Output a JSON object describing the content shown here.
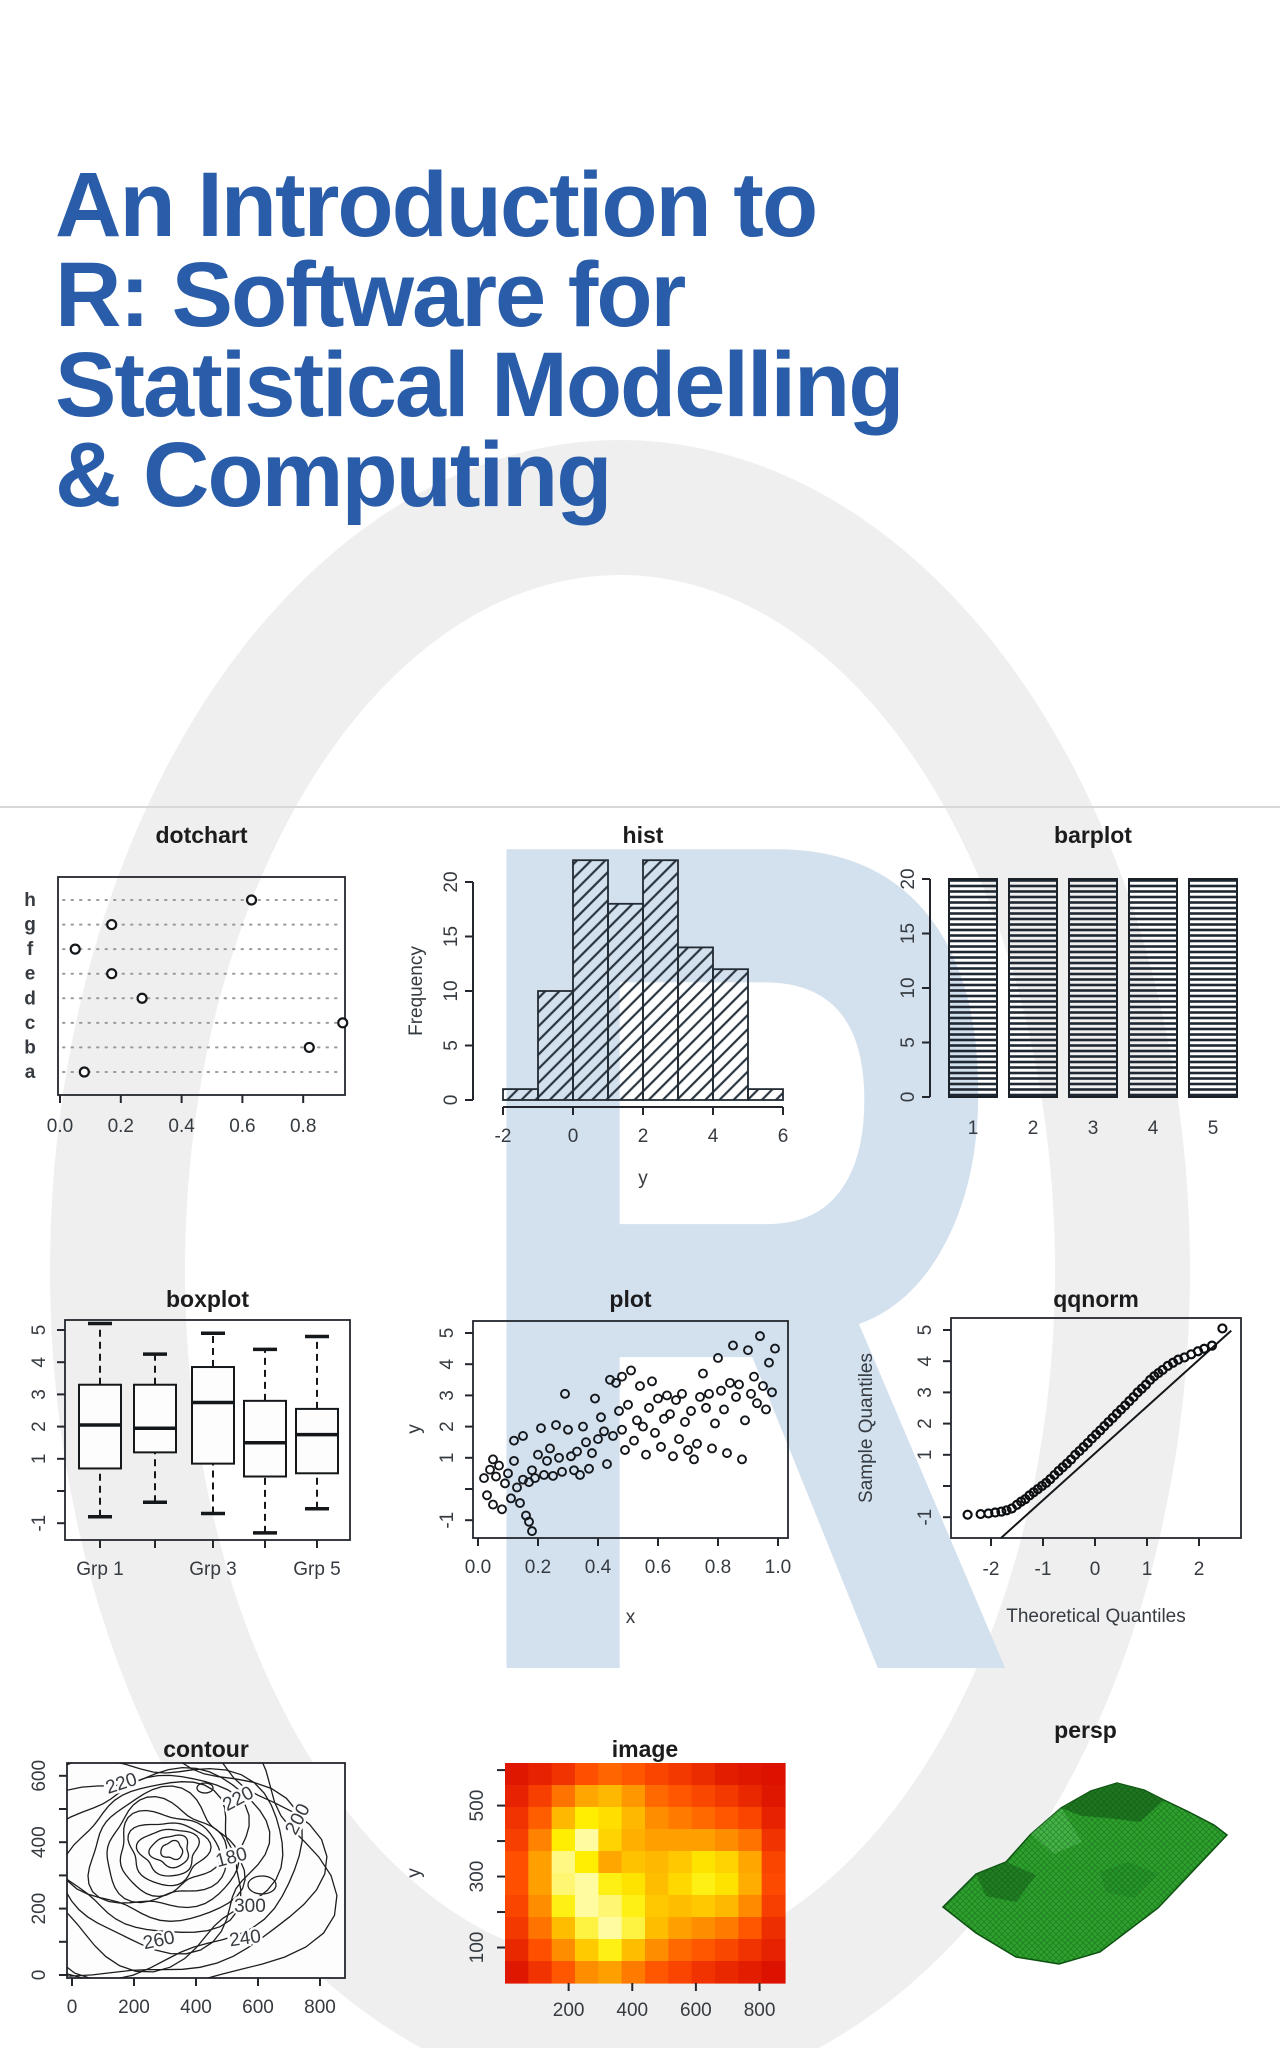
{
  "page": {
    "title_lines": [
      "An Introduction to",
      "R: Software for",
      "Statistical Modelling",
      "& Computing"
    ],
    "watermark_letter": "R",
    "colors": {
      "title_blue": "#2a5da9",
      "watermark_blue": "#d3e0ee",
      "ring_gray": "#efefef",
      "ink": "#23272d"
    }
  },
  "chart_data": [
    {
      "name": "dotchart",
      "type": "dotchart",
      "title": "dotchart",
      "categories_top_to_bottom": [
        "h",
        "g",
        "f",
        "e",
        "d",
        "c",
        "b",
        "a"
      ],
      "values": {
        "a": 0.08,
        "b": 0.82,
        "c": 0.93,
        "d": 0.27,
        "e": 0.17,
        "f": 0.05,
        "g": 0.17,
        "h": 0.63
      },
      "xticks": [
        0.0,
        0.2,
        0.4,
        0.6,
        0.8
      ],
      "xtick_labels": [
        "0.0",
        "0.2",
        "0.4",
        "0.6",
        "0.8"
      ],
      "xlim": [
        0,
        0.94
      ]
    },
    {
      "name": "hist",
      "type": "hist",
      "title": "hist",
      "ylabel": "Frequency",
      "xlabel": "y",
      "bins_start": -2,
      "bin_width": 1,
      "counts": [
        1,
        10,
        22,
        18,
        22,
        14,
        12,
        1
      ],
      "yticks": [
        0,
        5,
        10,
        15,
        20
      ],
      "ytick_labels": [
        "0",
        "5",
        "10",
        "15",
        "20"
      ],
      "xticks": [
        -2,
        0,
        2,
        4,
        6
      ],
      "xtick_labels": [
        "-2",
        "0",
        "2",
        "4",
        "6"
      ],
      "hatch": "diagonal"
    },
    {
      "name": "barplot",
      "type": "barplot",
      "title": "barplot",
      "categories": [
        "1",
        "2",
        "3",
        "4",
        "5"
      ],
      "values": [
        20,
        20,
        20,
        20,
        20
      ],
      "yticks": [
        0,
        5,
        10,
        15,
        20
      ],
      "ytick_labels": [
        "0",
        "5",
        "10",
        "15",
        "20"
      ],
      "hatch": "horizontal"
    },
    {
      "name": "boxplot",
      "type": "boxplot",
      "title": "boxplot",
      "yticks": [
        -1,
        0,
        1,
        2,
        3,
        4,
        5
      ],
      "ytick_labels": [
        "-1",
        "",
        "1",
        "2",
        "3",
        "4",
        "5"
      ],
      "xtick_labels": [
        "Grp 1",
        "",
        "Grp 3",
        "",
        "Grp 5"
      ],
      "boxes": [
        {
          "low": -0.8,
          "q1": 0.7,
          "med": 2.05,
          "q3": 3.3,
          "high": 5.2
        },
        {
          "low": -0.35,
          "q1": 1.2,
          "med": 1.95,
          "q3": 3.3,
          "high": 4.25
        },
        {
          "low": -0.7,
          "q1": 0.85,
          "med": 2.75,
          "q3": 3.85,
          "high": 4.9
        },
        {
          "low": -1.3,
          "q1": 0.45,
          "med": 1.5,
          "q3": 2.8,
          "high": 4.4
        },
        {
          "low": -0.55,
          "q1": 0.55,
          "med": 1.75,
          "q3": 2.55,
          "high": 4.8
        }
      ]
    },
    {
      "name": "plot",
      "type": "scatter",
      "title": "plot",
      "xlabel": "x",
      "ylabel": "y",
      "xticks": [
        0.0,
        0.2,
        0.4,
        0.6,
        0.8,
        1.0
      ],
      "xtick_labels": [
        "0.0",
        "0.2",
        "0.4",
        "0.6",
        "0.8",
        "1.0"
      ],
      "yticks": [
        -1,
        0,
        1,
        2,
        3,
        4,
        5
      ],
      "ytick_labels": [
        "-1",
        "",
        "1",
        "2",
        "3",
        "4",
        "5"
      ],
      "points": [
        [
          0.02,
          0.35
        ],
        [
          0.03,
          -0.2
        ],
        [
          0.04,
          0.62
        ],
        [
          0.05,
          0.95
        ],
        [
          0.05,
          -0.5
        ],
        [
          0.06,
          0.4
        ],
        [
          0.07,
          0.75
        ],
        [
          0.08,
          -0.65
        ],
        [
          0.09,
          0.18
        ],
        [
          0.1,
          0.5
        ],
        [
          0.11,
          -0.3
        ],
        [
          0.12,
          0.9
        ],
        [
          0.12,
          1.55
        ],
        [
          0.13,
          0.05
        ],
        [
          0.14,
          -0.45
        ],
        [
          0.15,
          0.3
        ],
        [
          0.15,
          1.7
        ],
        [
          0.16,
          -0.85
        ],
        [
          0.17,
          0.22
        ],
        [
          0.17,
          -1.05
        ],
        [
          0.18,
          0.6
        ],
        [
          0.18,
          -1.35
        ],
        [
          0.19,
          0.35
        ],
        [
          0.2,
          1.1
        ],
        [
          0.21,
          1.95
        ],
        [
          0.22,
          0.45
        ],
        [
          0.23,
          0.9
        ],
        [
          0.24,
          1.3
        ],
        [
          0.25,
          0.42
        ],
        [
          0.26,
          2.05
        ],
        [
          0.27,
          1.0
        ],
        [
          0.28,
          0.55
        ],
        [
          0.29,
          3.05
        ],
        [
          0.3,
          1.9
        ],
        [
          0.31,
          1.05
        ],
        [
          0.32,
          0.6
        ],
        [
          0.33,
          1.2
        ],
        [
          0.34,
          0.45
        ],
        [
          0.35,
          2.0
        ],
        [
          0.36,
          1.5
        ],
        [
          0.37,
          0.65
        ],
        [
          0.38,
          1.15
        ],
        [
          0.39,
          2.9
        ],
        [
          0.4,
          1.6
        ],
        [
          0.41,
          2.3
        ],
        [
          0.42,
          1.85
        ],
        [
          0.43,
          0.8
        ],
        [
          0.44,
          3.5
        ],
        [
          0.45,
          1.7
        ],
        [
          0.46,
          3.4
        ],
        [
          0.47,
          2.5
        ],
        [
          0.48,
          1.9
        ],
        [
          0.48,
          3.6
        ],
        [
          0.49,
          1.25
        ],
        [
          0.5,
          2.7
        ],
        [
          0.51,
          3.8
        ],
        [
          0.52,
          1.55
        ],
        [
          0.53,
          2.2
        ],
        [
          0.54,
          3.3
        ],
        [
          0.55,
          2.0
        ],
        [
          0.56,
          1.1
        ],
        [
          0.57,
          2.6
        ],
        [
          0.58,
          3.45
        ],
        [
          0.59,
          1.8
        ],
        [
          0.6,
          2.9
        ],
        [
          0.61,
          1.35
        ],
        [
          0.62,
          2.25
        ],
        [
          0.63,
          3.0
        ],
        [
          0.64,
          2.4
        ],
        [
          0.65,
          1.05
        ],
        [
          0.66,
          2.85
        ],
        [
          0.67,
          1.6
        ],
        [
          0.68,
          3.05
        ],
        [
          0.69,
          2.15
        ],
        [
          0.7,
          1.25
        ],
        [
          0.71,
          2.5
        ],
        [
          0.72,
          0.95
        ],
        [
          0.73,
          1.45
        ],
        [
          0.74,
          2.95
        ],
        [
          0.75,
          3.7
        ],
        [
          0.76,
          2.6
        ],
        [
          0.77,
          3.05
        ],
        [
          0.78,
          1.3
        ],
        [
          0.79,
          2.1
        ],
        [
          0.8,
          4.2
        ],
        [
          0.81,
          3.15
        ],
        [
          0.82,
          2.55
        ],
        [
          0.83,
          1.15
        ],
        [
          0.84,
          3.4
        ],
        [
          0.85,
          4.6
        ],
        [
          0.86,
          2.95
        ],
        [
          0.87,
          3.35
        ],
        [
          0.88,
          0.95
        ],
        [
          0.89,
          2.2
        ],
        [
          0.9,
          4.45
        ],
        [
          0.91,
          3.05
        ],
        [
          0.92,
          3.6
        ],
        [
          0.93,
          2.75
        ],
        [
          0.94,
          4.9
        ],
        [
          0.95,
          3.3
        ],
        [
          0.96,
          2.55
        ],
        [
          0.97,
          4.05
        ],
        [
          0.98,
          3.1
        ],
        [
          0.99,
          4.5
        ]
      ]
    },
    {
      "name": "qqnorm",
      "type": "qqnorm",
      "title": "qqnorm",
      "xlabel": "Theoretical Quantiles",
      "ylabel": "Sample Quantiles",
      "xticks": [
        -2,
        -1,
        0,
        1,
        2
      ],
      "xtick_labels": [
        "-2",
        "-1",
        "0",
        "1",
        "2"
      ],
      "yticks": [
        -1,
        0,
        1,
        2,
        3,
        4,
        5
      ],
      "ytick_labels": [
        "-1",
        "",
        "1",
        "2",
        "3",
        "4",
        "5"
      ],
      "line": [
        [
          -1.81,
          -1.67
        ],
        [
          2.62,
          4.98
        ]
      ],
      "points": [
        [
          -2.45,
          -0.92
        ],
        [
          -2.2,
          -0.9
        ],
        [
          -2.05,
          -0.88
        ],
        [
          -1.92,
          -0.85
        ],
        [
          -1.8,
          -0.82
        ],
        [
          -1.7,
          -0.78
        ],
        [
          -1.6,
          -0.72
        ],
        [
          -1.5,
          -0.6
        ],
        [
          -1.42,
          -0.5
        ],
        [
          -1.34,
          -0.42
        ],
        [
          -1.26,
          -0.3
        ],
        [
          -1.18,
          -0.2
        ],
        [
          -1.1,
          -0.1
        ],
        [
          -1.02,
          0.0
        ],
        [
          -0.94,
          0.1
        ],
        [
          -0.86,
          0.22
        ],
        [
          -0.78,
          0.35
        ],
        [
          -0.7,
          0.48
        ],
        [
          -0.62,
          0.6
        ],
        [
          -0.54,
          0.72
        ],
        [
          -0.46,
          0.85
        ],
        [
          -0.38,
          1.0
        ],
        [
          -0.3,
          1.12
        ],
        [
          -0.22,
          1.25
        ],
        [
          -0.14,
          1.38
        ],
        [
          -0.06,
          1.52
        ],
        [
          0.02,
          1.65
        ],
        [
          0.1,
          1.78
        ],
        [
          0.18,
          1.92
        ],
        [
          0.26,
          2.05
        ],
        [
          0.34,
          2.18
        ],
        [
          0.42,
          2.32
        ],
        [
          0.5,
          2.45
        ],
        [
          0.58,
          2.58
        ],
        [
          0.66,
          2.72
        ],
        [
          0.74,
          2.85
        ],
        [
          0.82,
          3.0
        ],
        [
          0.9,
          3.12
        ],
        [
          0.98,
          3.25
        ],
        [
          1.06,
          3.4
        ],
        [
          1.14,
          3.52
        ],
        [
          1.22,
          3.62
        ],
        [
          1.3,
          3.72
        ],
        [
          1.4,
          3.85
        ],
        [
          1.5,
          3.95
        ],
        [
          1.6,
          4.05
        ],
        [
          1.72,
          4.12
        ],
        [
          1.85,
          4.22
        ],
        [
          1.98,
          4.32
        ],
        [
          2.1,
          4.4
        ],
        [
          2.25,
          4.5
        ],
        [
          2.45,
          5.05
        ]
      ]
    },
    {
      "name": "contour",
      "type": "contour",
      "title": "contour",
      "xticks": [
        0,
        200,
        400,
        600,
        800
      ],
      "xtick_labels": [
        "0",
        "200",
        "400",
        "600",
        "800"
      ],
      "yticks": [
        0,
        100,
        200,
        300,
        400,
        500,
        600
      ],
      "ytick_labels": [
        "0",
        "",
        "200",
        "",
        "400",
        "",
        "600"
      ],
      "xlim": [
        0,
        880
      ],
      "ylim": [
        0,
        630
      ],
      "contour_labels": [
        {
          "text": "220",
          "x": 165,
          "y": 560,
          "rot": -18
        },
        {
          "text": "220",
          "x": 545,
          "y": 515,
          "rot": -28
        },
        {
          "text": "200",
          "x": 745,
          "y": 461,
          "rot": -62
        },
        {
          "text": "180",
          "x": 519,
          "y": 337,
          "rot": -15
        },
        {
          "text": "300",
          "x": 574,
          "y": 190,
          "rot": 0
        },
        {
          "text": "240",
          "x": 561,
          "y": 93,
          "rot": -8
        },
        {
          "text": "260",
          "x": 284,
          "y": 87,
          "rot": -12
        }
      ],
      "levels_shown": [
        100,
        120,
        140,
        160,
        180,
        200,
        220,
        240,
        260,
        280,
        300
      ]
    },
    {
      "name": "image",
      "type": "heatmap",
      "title": "image",
      "ylabel": "y",
      "xticks": [
        200,
        400,
        600,
        800
      ],
      "xtick_labels": [
        "200",
        "400",
        "600",
        "800"
      ],
      "yticks": [
        100,
        200,
        300,
        400,
        500,
        600
      ],
      "ytick_labels": [
        "100",
        "",
        "300",
        "",
        "500",
        ""
      ],
      "xlim": [
        0,
        880
      ],
      "ylim": [
        0,
        620
      ],
      "palette_low_to_high": [
        "#d40000",
        "#ff5000",
        "#ffaa00",
        "#ffee00",
        "#ffffd0"
      ],
      "matrix": [
        [
          0.08,
          0.12,
          0.18,
          0.28,
          0.34,
          0.3,
          0.24,
          0.2,
          0.15,
          0.1,
          0.08,
          0.06
        ],
        [
          0.12,
          0.22,
          0.38,
          0.52,
          0.58,
          0.48,
          0.35,
          0.3,
          0.25,
          0.2,
          0.14,
          0.08
        ],
        [
          0.18,
          0.32,
          0.58,
          0.78,
          0.72,
          0.58,
          0.45,
          0.4,
          0.35,
          0.3,
          0.24,
          0.12
        ],
        [
          0.22,
          0.42,
          0.78,
          0.95,
          0.68,
          0.55,
          0.5,
          0.5,
          0.5,
          0.45,
          0.38,
          0.18
        ],
        [
          0.28,
          0.5,
          0.92,
          0.78,
          0.52,
          0.62,
          0.58,
          0.64,
          0.74,
          0.68,
          0.52,
          0.24
        ],
        [
          0.28,
          0.5,
          0.9,
          0.95,
          0.8,
          0.74,
          0.6,
          0.7,
          0.8,
          0.74,
          0.54,
          0.26
        ],
        [
          0.24,
          0.45,
          0.8,
          0.95,
          0.9,
          0.8,
          0.64,
          0.6,
          0.64,
          0.58,
          0.44,
          0.22
        ],
        [
          0.2,
          0.38,
          0.6,
          0.85,
          0.95,
          0.85,
          0.6,
          0.5,
          0.45,
          0.4,
          0.3,
          0.16
        ],
        [
          0.14,
          0.28,
          0.45,
          0.65,
          0.8,
          0.6,
          0.45,
          0.35,
          0.3,
          0.25,
          0.18,
          0.12
        ],
        [
          0.08,
          0.18,
          0.3,
          0.45,
          0.5,
          0.4,
          0.3,
          0.24,
          0.18,
          0.14,
          0.1,
          0.06
        ]
      ]
    },
    {
      "name": "persp",
      "type": "persp",
      "title": "persp",
      "colors": {
        "main": "#2ea22e",
        "dark": "#1b6f1f",
        "mid": "#26922a",
        "light": "#55c25a",
        "edge": "#0d5212"
      },
      "outline": [
        [
          85,
          195
        ],
        [
          118,
          162
        ],
        [
          148,
          150
        ],
        [
          173,
          122
        ],
        [
          203,
          96
        ],
        [
          233,
          79
        ],
        [
          259,
          71
        ],
        [
          286,
          78
        ],
        [
          306,
          88
        ],
        [
          331,
          100
        ],
        [
          356,
          113
        ],
        [
          369,
          123
        ],
        [
          300,
          196
        ],
        [
          242,
          240
        ],
        [
          201,
          252
        ],
        [
          158,
          245
        ],
        [
          118,
          221
        ]
      ],
      "ridge": [
        [
          203,
          96
        ],
        [
          233,
          79
        ],
        [
          259,
          71
        ],
        [
          286,
          78
        ],
        [
          306,
          88
        ],
        [
          282,
          110
        ],
        [
          250,
          106
        ],
        [
          224,
          104
        ]
      ],
      "shade1": [
        [
          118,
          162
        ],
        [
          148,
          150
        ],
        [
          178,
          163
        ],
        [
          158,
          190
        ],
        [
          128,
          184
        ]
      ],
      "shade2": [
        [
          242,
          160
        ],
        [
          270,
          150
        ],
        [
          300,
          162
        ],
        [
          276,
          186
        ],
        [
          248,
          180
        ]
      ],
      "shade3": [
        [
          173,
          122
        ],
        [
          203,
          96
        ],
        [
          224,
          130
        ],
        [
          196,
          142
        ]
      ]
    }
  ]
}
